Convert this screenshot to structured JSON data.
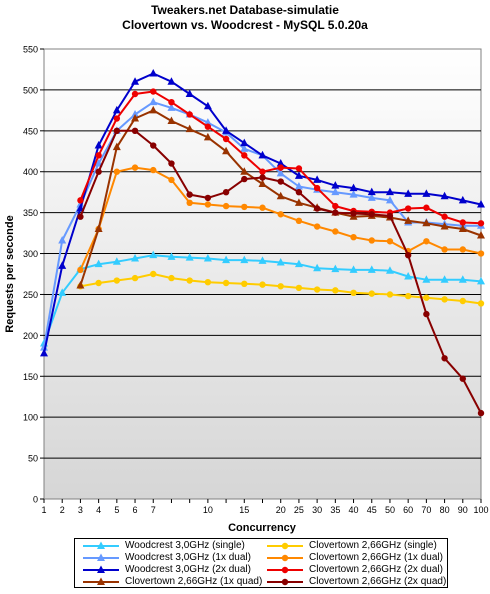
{
  "chart_data": {
    "type": "line",
    "title": "Tweakers.net Database-simulatie",
    "subtitle": "Clovertown vs. Woodcrest - MySQL 5.0.20a",
    "xlabel": "Concurrency",
    "ylabel": "Requests per seconde",
    "ylim": [
      0,
      550
    ],
    "yticks": [
      "0",
      "50",
      "100",
      "150",
      "200",
      "250",
      "300",
      "350",
      "400",
      "450",
      "500",
      "550"
    ],
    "categories": [
      "1",
      "2",
      "3",
      "4",
      "5",
      "6",
      "7",
      "8",
      "9",
      "10",
      "12",
      "15",
      "18",
      "20",
      "25",
      "30",
      "35",
      "40",
      "45",
      "50",
      "60",
      "70",
      "80",
      "90",
      "100"
    ],
    "xtick_labels": [
      "1",
      "2",
      "3",
      "4",
      "5",
      "6",
      "7",
      "10",
      "15",
      "20",
      "25",
      "30",
      "35",
      "40",
      "45",
      "50",
      "60",
      "70",
      "80",
      "90",
      "100"
    ],
    "grid": true,
    "legend_position": "bottom",
    "series": [
      {
        "name": "Woodcrest 3,0GHz (single)",
        "color": "#33ccff",
        "marker": "triangle",
        "values": [
          190,
          252,
          281,
          287,
          290,
          294,
          298,
          296,
          295,
          294,
          292,
          292,
          291,
          289,
          287,
          282,
          281,
          280,
          280,
          279,
          272,
          268,
          268,
          268,
          266
        ]
      },
      {
        "name": "Clovertown 2,66GHz (single)",
        "color": "#ffcc00",
        "marker": "circle",
        "values": [
          null,
          null,
          260,
          264,
          267,
          270,
          275,
          270,
          267,
          265,
          264,
          263,
          262,
          260,
          258,
          256,
          255,
          252,
          251,
          250,
          248,
          246,
          244,
          242,
          239
        ]
      },
      {
        "name": "Woodcrest 3,0GHz (1x dual)",
        "color": "#6699ff",
        "marker": "triangle",
        "values": [
          185,
          316,
          360,
          410,
          450,
          470,
          485,
          478,
          470,
          460,
          448,
          428,
          420,
          398,
          382,
          378,
          375,
          372,
          368,
          365,
          338,
          338,
          336,
          334,
          334
        ]
      },
      {
        "name": "Clovertown 2,66GHz (1x dual)",
        "color": "#ff8800",
        "marker": "circle",
        "values": [
          null,
          null,
          280,
          330,
          400,
          405,
          402,
          390,
          362,
          360,
          358,
          357,
          356,
          348,
          340,
          333,
          327,
          320,
          316,
          315,
          303,
          315,
          305,
          305,
          300
        ]
      },
      {
        "name": "Woodcrest 3,0GHz (2x dual)",
        "color": "#0000cc",
        "marker": "triangle",
        "values": [
          178,
          285,
          355,
          432,
          475,
          510,
          520,
          510,
          495,
          480,
          450,
          435,
          420,
          410,
          395,
          390,
          383,
          380,
          375,
          375,
          373,
          373,
          370,
          365,
          360
        ]
      },
      {
        "name": "Clovertown 2,66GHz (2x dual)",
        "color": "#ee0000",
        "marker": "circle",
        "values": [
          null,
          null,
          365,
          420,
          465,
          495,
          498,
          485,
          470,
          455,
          440,
          420,
          400,
          405,
          404,
          380,
          358,
          352,
          351,
          350,
          355,
          356,
          345,
          338,
          337
        ]
      },
      {
        "name": "Clovertown 2,66GHz (1x quad)",
        "color": "#993300",
        "marker": "triangle",
        "values": [
          null,
          null,
          261,
          330,
          430,
          465,
          475,
          462,
          452,
          442,
          425,
          400,
          385,
          370,
          362,
          356,
          350,
          345,
          346,
          344,
          340,
          337,
          333,
          330,
          322
        ]
      },
      {
        "name": "Clovertown 2,66GHz (2x quad)",
        "color": "#880000",
        "marker": "circle",
        "values": [
          null,
          null,
          345,
          400,
          450,
          450,
          432,
          410,
          372,
          368,
          375,
          391,
          393,
          388,
          375,
          355,
          350,
          349,
          348,
          346,
          298,
          226,
          172,
          147,
          105
        ]
      }
    ]
  }
}
